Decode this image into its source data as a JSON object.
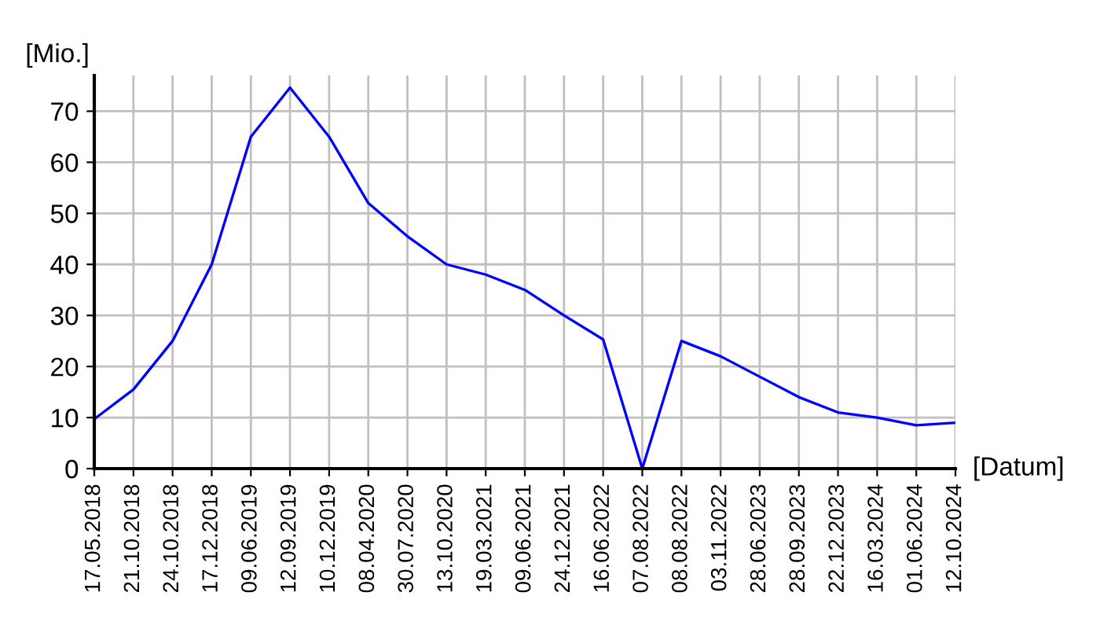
{
  "chart_data": {
    "type": "line",
    "ylabel": "[Mio.]",
    "xlabel": "[Datum]",
    "categories": [
      "17.05.2018",
      "21.10.2018",
      "24.10.2018",
      "17.12.2018",
      "09.06.2019",
      "12.09.2019",
      "10.12.2019",
      "08.04.2020",
      "30.07.2020",
      "13.10.2020",
      "19.03.2021",
      "09.06.2021",
      "24.12.2021",
      "16.06.2022",
      "07.08.2022",
      "08.08.2022",
      "03.11.2022",
      "28.06.2023",
      "28.09.2023",
      "22.12.2023",
      "16.03.2024",
      "01.06.2024",
      "12.10.2024"
    ],
    "series": [
      {
        "color": "#0000ff",
        "values": [
          9.7,
          15.5,
          25,
          40,
          65,
          74.6,
          65,
          52,
          45.5,
          40,
          38,
          35,
          30,
          25.3,
          0,
          25,
          22,
          18,
          14,
          11,
          10,
          8.5,
          9
        ]
      }
    ],
    "ylim": [
      0,
      77
    ],
    "yticks": [
      0,
      10,
      20,
      30,
      40,
      50,
      60,
      70
    ],
    "grid": true,
    "legend": false,
    "marker": "none",
    "line_style": "solid"
  }
}
